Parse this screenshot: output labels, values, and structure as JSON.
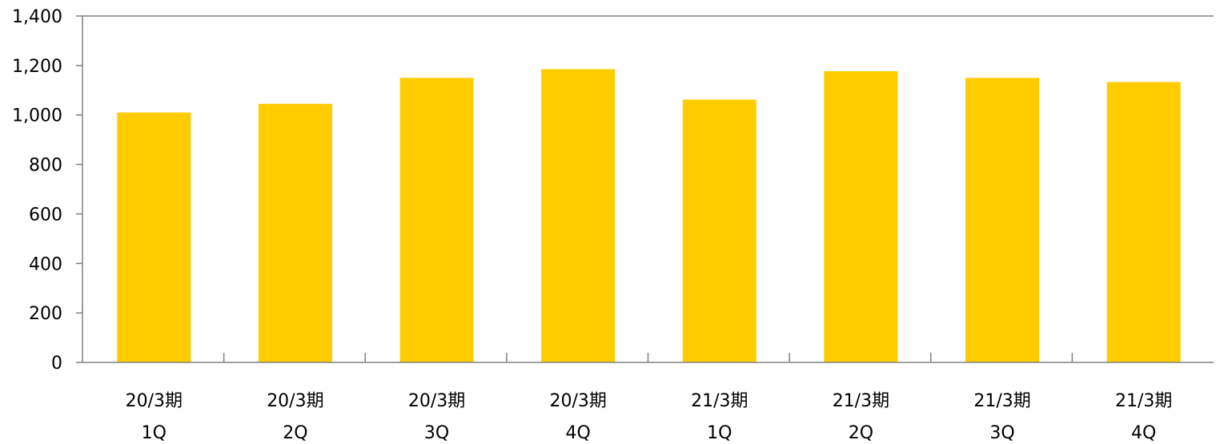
{
  "chart_data": {
    "type": "bar",
    "title": "",
    "xlabel": "",
    "ylabel": "",
    "categories": [
      [
        "20/3期",
        "1Q"
      ],
      [
        "20/3期",
        "2Q"
      ],
      [
        "20/3期",
        "3Q"
      ],
      [
        "20/3期",
        "4Q"
      ],
      [
        "21/3期",
        "1Q"
      ],
      [
        "21/3期",
        "2Q"
      ],
      [
        "21/3期",
        "3Q"
      ],
      [
        "21/3期",
        "4Q"
      ]
    ],
    "values": [
      1010,
      1045,
      1150,
      1185,
      1062,
      1177,
      1150,
      1133
    ],
    "ylim": [
      0,
      1400
    ],
    "yticks": [
      0,
      200,
      400,
      600,
      800,
      1000,
      1200,
      1400
    ],
    "ytick_labels": [
      "0",
      "200",
      "400",
      "600",
      "800",
      "1,000",
      "1,200",
      "1,400"
    ],
    "bar_color": "#FFCC00",
    "axis_color": "#808080",
    "grid": false,
    "legend": "none"
  }
}
